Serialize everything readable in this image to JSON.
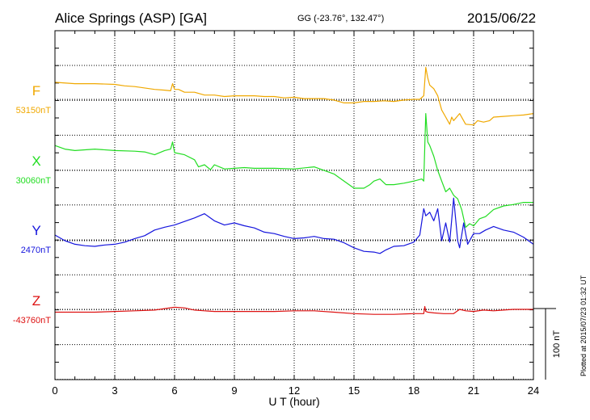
{
  "header": {
    "title": "Alice Springs (ASP)  [GA]",
    "coords": "GG (-23.76°, 132.47°)",
    "date": "2015/06/22"
  },
  "plotted_note": "Plotted at 2015/07/23 01:32 UT",
  "chart_data": {
    "type": "line",
    "xlabel": "U T (hour)",
    "xlim": [
      0,
      24
    ],
    "xticks": [
      "0",
      "3",
      "6",
      "9",
      "12",
      "15",
      "18",
      "21",
      "24"
    ],
    "scale_bar_label": "100 nT",
    "grid": true,
    "series": [
      {
        "name": "F",
        "baseline_label": "53150nT",
        "color": "#f0a800",
        "x": [
          0,
          1,
          2,
          3,
          3.5,
          4,
          5,
          5.5,
          5.8,
          5.9,
          6,
          6.2,
          6.5,
          7,
          7.5,
          7.8,
          8,
          8.5,
          9,
          9.5,
          10,
          10.5,
          11,
          11.5,
          12,
          12.5,
          13,
          13.5,
          14,
          14.5,
          15,
          15.5,
          16,
          16.5,
          17,
          17.5,
          18,
          18.3,
          18.5,
          18.6,
          18.7,
          18.8,
          19,
          19.2,
          19.4,
          19.6,
          19.8,
          19.9,
          20,
          20.3,
          20.6,
          21,
          21.2,
          21.5,
          21.8,
          22,
          22.5,
          23,
          23.5,
          24
        ],
        "y": [
          24,
          22,
          22,
          21,
          19,
          18,
          14,
          13,
          12,
          22,
          14,
          14,
          10,
          10,
          6,
          6,
          6,
          4,
          5,
          5,
          5,
          4,
          4,
          2,
          3,
          1,
          1,
          1,
          -1,
          -5,
          -5,
          -3,
          -3,
          -2,
          -3,
          -1,
          0,
          0,
          5,
          45,
          30,
          20,
          15,
          5,
          -15,
          -25,
          -35,
          -25,
          -30,
          -20,
          -35,
          -36,
          -30,
          -32,
          -30,
          -25,
          -24,
          -23,
          -22,
          -20
        ]
      },
      {
        "name": "X",
        "baseline_label": "30060nT",
        "color": "#22dd22",
        "x": [
          0,
          0.5,
          1,
          2,
          3,
          4,
          4.5,
          5,
          5.5,
          5.8,
          5.9,
          6,
          6.5,
          7,
          7.2,
          7.5,
          7.8,
          8,
          8.5,
          9,
          9.5,
          10,
          11,
          12,
          13,
          14,
          14.5,
          15,
          15.5,
          15.8,
          16,
          16.3,
          16.6,
          17,
          17.5,
          18,
          18.4,
          18.5,
          18.6,
          18.7,
          18.8,
          19,
          19.2,
          19.4,
          19.6,
          19.8,
          20,
          20.2,
          20.4,
          20.6,
          20.8,
          21,
          21.3,
          21.6,
          22,
          22.5,
          23,
          23.5,
          24
        ],
        "y": [
          35,
          30,
          28,
          30,
          28,
          27,
          26,
          22,
          28,
          30,
          40,
          25,
          22,
          15,
          5,
          8,
          1,
          8,
          2,
          3,
          4,
          3,
          3,
          2,
          5,
          -5,
          -15,
          -25,
          -25,
          -20,
          -15,
          -12,
          -20,
          -20,
          -18,
          -15,
          -12,
          -15,
          80,
          40,
          35,
          20,
          0,
          -15,
          -30,
          -25,
          -35,
          -40,
          -55,
          -80,
          -75,
          -78,
          -68,
          -65,
          -55,
          -50,
          -48,
          -45,
          -45
        ]
      },
      {
        "name": "Y",
        "baseline_label": "2470nT",
        "color": "#1515dd",
        "x": [
          0,
          0.5,
          1,
          1.5,
          2,
          2.5,
          3,
          3.5,
          4,
          4.5,
          5,
          5.5,
          6,
          6.5,
          7,
          7.5,
          7.7,
          8,
          8.5,
          9,
          9.5,
          10,
          10.5,
          11,
          11.5,
          12,
          12.5,
          13,
          13.5,
          14,
          14.5,
          15,
          15.5,
          16,
          16.3,
          16.6,
          17,
          17.5,
          18,
          18.3,
          18.5,
          18.6,
          18.8,
          19,
          19.2,
          19.4,
          19.6,
          19.8,
          20,
          20.2,
          20.3,
          20.5,
          20.7,
          20.9,
          21,
          21.3,
          21.6,
          22,
          22.5,
          23,
          23.5,
          24
        ],
        "y": [
          8,
          0,
          -5,
          -7,
          -8,
          -6,
          -5,
          -2,
          3,
          7,
          15,
          19,
          22,
          27,
          32,
          38,
          34,
          28,
          22,
          25,
          21,
          18,
          12,
          10,
          6,
          3,
          4,
          6,
          3,
          2,
          -3,
          -10,
          -15,
          -16,
          -18,
          -13,
          -8,
          -7,
          -2,
          8,
          45,
          35,
          40,
          28,
          45,
          0,
          25,
          -2,
          60,
          0,
          -10,
          25,
          -5,
          5,
          10,
          10,
          15,
          20,
          15,
          12,
          5,
          -5
        ]
      },
      {
        "name": "Z",
        "baseline_label": "-43760nT",
        "color": "#dd1111",
        "x": [
          0,
          1,
          2,
          3,
          4,
          5,
          5.5,
          6,
          6.5,
          7,
          7.5,
          8,
          9,
          10,
          11,
          12,
          13,
          14,
          15,
          16,
          17,
          18,
          18.5,
          18.55,
          18.6,
          18.7,
          19,
          19.5,
          20,
          20.3,
          20.6,
          21,
          21.5,
          22,
          22.5,
          23,
          23.5,
          24
        ],
        "y": [
          -4,
          -4,
          -4,
          -3,
          -2,
          -1,
          1,
          3,
          2,
          -1,
          -2,
          -3,
          -3,
          -3,
          -3,
          -2,
          -2,
          -4,
          -6,
          -7,
          -7,
          -6,
          -6,
          4,
          -3,
          -4,
          -5,
          -6,
          -6,
          0,
          -2,
          -3,
          -1,
          -2,
          -1,
          0,
          0,
          0
        ]
      }
    ]
  }
}
